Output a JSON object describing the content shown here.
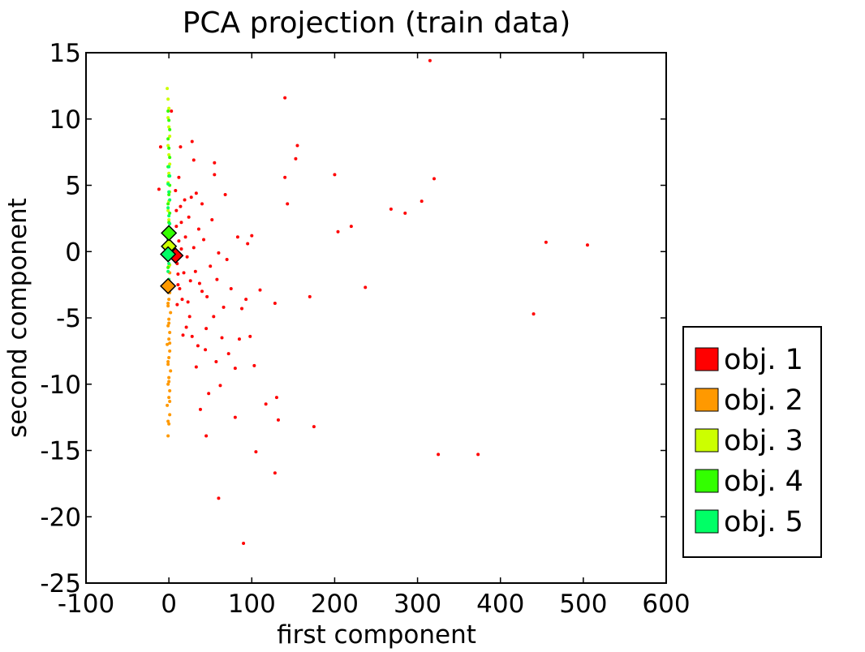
{
  "chart_data": {
    "type": "scatter",
    "title": "PCA projection (train data)",
    "xlabel": "first component",
    "ylabel": "second component",
    "xlim": [
      -100,
      600
    ],
    "ylim": [
      -25,
      15
    ],
    "x_ticks": [
      -100,
      0,
      100,
      200,
      300,
      400,
      500,
      600
    ],
    "y_ticks": [
      -25,
      -20,
      -15,
      -10,
      -5,
      0,
      5,
      10,
      15
    ],
    "grid": false,
    "legend": "right-bottom-outside",
    "series": [
      {
        "name": "obj. 1",
        "color": "#ff0000",
        "points": [
          [
            315,
            14.4
          ],
          [
            140,
            11.6
          ],
          [
            155,
            8
          ],
          [
            153,
            7
          ],
          [
            200,
            5.8
          ],
          [
            320,
            5.5
          ],
          [
            140,
            5.6
          ],
          [
            143,
            3.6
          ],
          [
            305,
            3.8
          ],
          [
            268,
            3.2
          ],
          [
            285,
            2.9
          ],
          [
            220,
            1.9
          ],
          [
            204,
            1.5
          ],
          [
            455,
            0.7
          ],
          [
            505,
            0.5
          ],
          [
            237,
            -2.7
          ],
          [
            170,
            -3.4
          ],
          [
            440,
            -4.7
          ],
          [
            325,
            -15.3
          ],
          [
            373,
            -15.3
          ],
          [
            128,
            -3.9
          ],
          [
            90,
            -22
          ],
          [
            60,
            -18.6
          ],
          [
            128,
            -16.7
          ],
          [
            105,
            -15.1
          ],
          [
            45,
            -13.9
          ],
          [
            80,
            -12.5
          ],
          [
            117,
            -11.5
          ],
          [
            132,
            -12.7
          ],
          [
            130,
            -11
          ],
          [
            175,
            -13.2
          ],
          [
            98,
            -6.4
          ],
          [
            110,
            -2.9
          ],
          [
            93,
            -3.6
          ],
          [
            85,
            -6.6
          ],
          [
            62,
            -10.1
          ],
          [
            103,
            -8.6
          ],
          [
            80,
            -8.8
          ],
          [
            33,
            -8.7
          ],
          [
            48,
            -10.7
          ],
          [
            38,
            -11.9
          ],
          [
            55,
            5.8
          ],
          [
            68,
            4.3
          ],
          [
            55,
            6.7
          ],
          [
            28,
            8.3
          ],
          [
            30,
            6.9
          ],
          [
            100,
            1.2
          ],
          [
            95,
            0.6
          ],
          [
            83,
            1.1
          ],
          [
            70,
            -0.6
          ],
          [
            58,
            -2.1
          ],
          [
            66,
            -4.2
          ],
          [
            45,
            -5.8
          ],
          [
            35,
            -7.1
          ],
          [
            25,
            -4.9
          ],
          [
            18,
            -1.6
          ],
          [
            15,
            2.2
          ],
          [
            12,
            0.8
          ],
          [
            10,
            -0.9
          ],
          [
            9,
            1.9
          ],
          [
            11,
            -2.5
          ],
          [
            14,
            3.4
          ],
          [
            16,
            -3.6
          ],
          [
            20,
            1.1
          ],
          [
            22,
            -0.4
          ],
          [
            24,
            2.6
          ],
          [
            26,
            -2.2
          ],
          [
            30,
            0.3
          ],
          [
            32,
            -1.5
          ],
          [
            36,
            1.7
          ],
          [
            40,
            -3
          ],
          [
            42,
            0.9
          ],
          [
            50,
            -1.1
          ],
          [
            52,
            2.4
          ],
          [
            60,
            -0.1
          ],
          [
            75,
            -2.8
          ],
          [
            40,
            3.6
          ],
          [
            33,
            4.4
          ],
          [
            12,
            5.6
          ],
          [
            14,
            7.9
          ],
          [
            8,
            4.6
          ],
          [
            17,
            -6.3
          ],
          [
            21,
            -5.7
          ],
          [
            28,
            -6.4
          ],
          [
            10,
            -4
          ],
          [
            13,
            -2.8
          ],
          [
            19,
            3.9
          ],
          [
            27,
            4.1
          ],
          [
            46,
            -3.4
          ],
          [
            54,
            -4.9
          ],
          [
            64,
            -6.5
          ],
          [
            72,
            -7.7
          ],
          [
            88,
            -4.3
          ],
          [
            57,
            -8.3
          ],
          [
            44,
            -7.4
          ],
          [
            37,
            -2.4
          ],
          [
            9,
            3.1
          ],
          [
            11,
            -1.7
          ],
          [
            15,
            0.2
          ],
          [
            23,
            -3.8
          ],
          [
            -10,
            7.9
          ],
          [
            -12,
            4.7
          ],
          [
            -8,
            -2.6
          ],
          [
            3,
            10.6
          ]
        ]
      },
      {
        "name": "obj. 2",
        "color": "#ff9900",
        "points": [
          [
            -1,
            -13.9
          ],
          [
            0,
            -13
          ],
          [
            1,
            -12.3
          ],
          [
            -2,
            -11.6
          ],
          [
            0,
            -11
          ],
          [
            1,
            -10.5
          ],
          [
            -1,
            -10
          ],
          [
            0,
            -9.5
          ],
          [
            2,
            -9
          ],
          [
            -1,
            -8.5
          ],
          [
            0,
            -8
          ],
          [
            1,
            -7.5
          ],
          [
            -2,
            -7
          ],
          [
            0,
            -6.6
          ],
          [
            1,
            -6.1
          ],
          [
            -1,
            -5.6
          ],
          [
            0,
            -5.1
          ],
          [
            2,
            -4.6
          ],
          [
            -1,
            -4.1
          ],
          [
            0,
            -3.6
          ],
          [
            1,
            -3.1
          ],
          [
            -1,
            -2.6
          ],
          [
            0,
            -2.1
          ],
          [
            1,
            -1.6
          ],
          [
            0,
            -1.1
          ],
          [
            -1,
            -12.8
          ],
          [
            1,
            -11.3
          ],
          [
            0,
            -9.8
          ],
          [
            -1,
            -8.3
          ],
          [
            1,
            -6.9
          ],
          [
            0,
            -5.4
          ],
          [
            -1,
            -3.9
          ],
          [
            1,
            -2.4
          ]
        ]
      },
      {
        "name": "obj. 3",
        "color": "#ccff00",
        "points": [
          [
            -2,
            12.3
          ],
          [
            -1,
            11.5
          ],
          [
            0,
            10.8
          ],
          [
            -1,
            10.1
          ],
          [
            0,
            9.4
          ],
          [
            1,
            8.7
          ],
          [
            -1,
            8
          ],
          [
            0,
            7.3
          ],
          [
            1,
            6.6
          ],
          [
            0,
            5.9
          ],
          [
            -1,
            5.2
          ],
          [
            1,
            4.5
          ],
          [
            0,
            3.8
          ],
          [
            -1,
            3.1
          ],
          [
            0,
            2.4
          ],
          [
            1,
            1.7
          ],
          [
            0,
            1
          ],
          [
            -1,
            0.4
          ],
          [
            0,
            -0.3
          ],
          [
            1,
            -1
          ]
        ]
      },
      {
        "name": "obj. 4",
        "color": "#33ff00",
        "points": [
          [
            -1,
            10.6
          ],
          [
            0,
            9.9
          ],
          [
            1,
            9.2
          ],
          [
            -1,
            8.5
          ],
          [
            0,
            7.8
          ],
          [
            1,
            7.1
          ],
          [
            -1,
            6.4
          ],
          [
            0,
            5.7
          ],
          [
            1,
            5
          ],
          [
            0,
            4.3
          ],
          [
            -1,
            3.6
          ],
          [
            1,
            2.9
          ],
          [
            0,
            2.2
          ],
          [
            -1,
            1.5
          ],
          [
            0,
            0.8
          ],
          [
            1,
            0.1
          ],
          [
            0,
            -0.6
          ],
          [
            -1,
            -1.2
          ]
        ]
      },
      {
        "name": "obj. 5",
        "color": "#00ff66",
        "points": [
          [
            0,
            6.4
          ],
          [
            1,
            5.7
          ],
          [
            -1,
            5.1
          ],
          [
            0,
            4.5
          ],
          [
            1,
            3.9
          ],
          [
            -1,
            3.3
          ],
          [
            0,
            2.7
          ],
          [
            1,
            2.1
          ],
          [
            0,
            1.5
          ],
          [
            -1,
            0.9
          ],
          [
            0,
            0.3
          ],
          [
            1,
            -0.3
          ],
          [
            0,
            -0.9
          ],
          [
            -1,
            -1.5
          ],
          [
            0,
            -2.1
          ]
        ]
      }
    ],
    "centroids": [
      {
        "series": "obj. 1",
        "x": 8,
        "y": -0.3
      },
      {
        "series": "obj. 2",
        "x": -1,
        "y": -2.6
      },
      {
        "series": "obj. 3",
        "x": 0,
        "y": 0.4
      },
      {
        "series": "obj. 4",
        "x": 0,
        "y": 1.4
      },
      {
        "series": "obj. 5",
        "x": -1,
        "y": -0.2
      }
    ]
  }
}
